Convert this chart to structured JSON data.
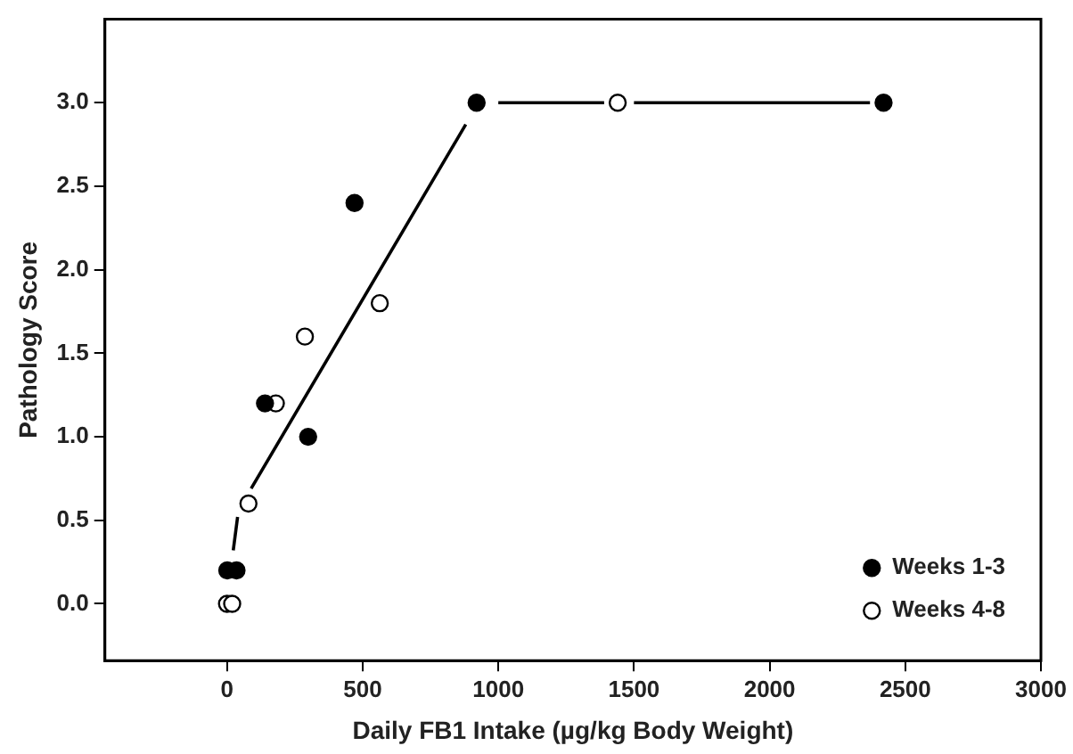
{
  "chart_data": {
    "type": "scatter",
    "xlabel": "Daily FB1 Intake (µg/kg Body Weight)",
    "ylabel": "Pathology Score",
    "xlim": [
      -450,
      3000
    ],
    "xticks": [
      0,
      500,
      1000,
      1500,
      2000,
      2500,
      3000
    ],
    "ylim": [
      -0.34,
      3.5
    ],
    "yticks": [
      {
        "value": 0,
        "label": "0.0"
      },
      {
        "value": 0.5,
        "label": "0.5"
      },
      {
        "value": 1,
        "label": "1.0"
      },
      {
        "value": 1.5,
        "label": "1.5"
      },
      {
        "value": 2,
        "label": "2.0"
      },
      {
        "value": 2.5,
        "label": "2.5"
      },
      {
        "value": 3,
        "label": "3.0"
      }
    ],
    "grid": false,
    "legend": "bottom right",
    "marker": "circle",
    "series": [
      {
        "name": "Weeks 1-3",
        "color": "#000000",
        "x": [
          1,
          35,
          140,
          299,
          470,
          920,
          2420
        ],
        "values": [
          0.2,
          0.2,
          1.2,
          1.0,
          2.4,
          3.0,
          3.0
        ]
      },
      {
        "name": "Weeks 4-8",
        "color": "#ffffff",
        "x": [
          0,
          19,
          79,
          180,
          287,
          563,
          1440
        ],
        "values": [
          0,
          0,
          0.6,
          1.2,
          1.6,
          1.8,
          3.0
        ]
      },
      {
        "type": "line",
        "color": "#000000",
        "marker": "none",
        "line_style": "solid",
        "x": [
          23,
          39,
          60,
          89,
          880,
          940,
          1000,
          1390,
          1440,
          1500,
          2370
        ],
        "values": [
          0.32,
          0.52,
          null,
          0.69,
          2.87,
          null,
          3.0,
          3.0,
          null,
          3.0,
          3.0
        ]
      }
    ]
  }
}
